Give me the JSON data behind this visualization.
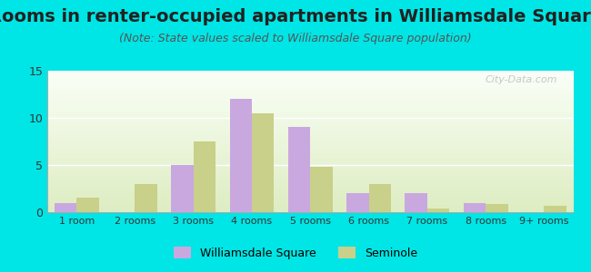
{
  "title": "Rooms in renter-occupied apartments in Williamsdale Square",
  "subtitle": "(Note: State values scaled to Williamsdale Square population)",
  "categories": [
    "1 room",
    "2 rooms",
    "3 rooms",
    "4 rooms",
    "5 rooms",
    "6 rooms",
    "7 rooms",
    "8 rooms",
    "9+ rooms"
  ],
  "williamsdale": [
    1,
    0,
    5,
    12,
    9,
    2,
    2,
    1,
    0
  ],
  "seminole": [
    1.5,
    3,
    7.5,
    10.5,
    4.8,
    3,
    0.4,
    0.9,
    0.7
  ],
  "bar_color_williams": "#c9a8e0",
  "bar_color_seminole": "#c8d08a",
  "bg_outer": "#00e5e5",
  "ylim": [
    0,
    15
  ],
  "yticks": [
    0,
    5,
    10,
    15
  ],
  "title_fontsize": 14,
  "subtitle_fontsize": 9,
  "legend_label_williams": "Williamsdale Square",
  "legend_label_seminole": "Seminole",
  "watermark": "City-Data.com"
}
